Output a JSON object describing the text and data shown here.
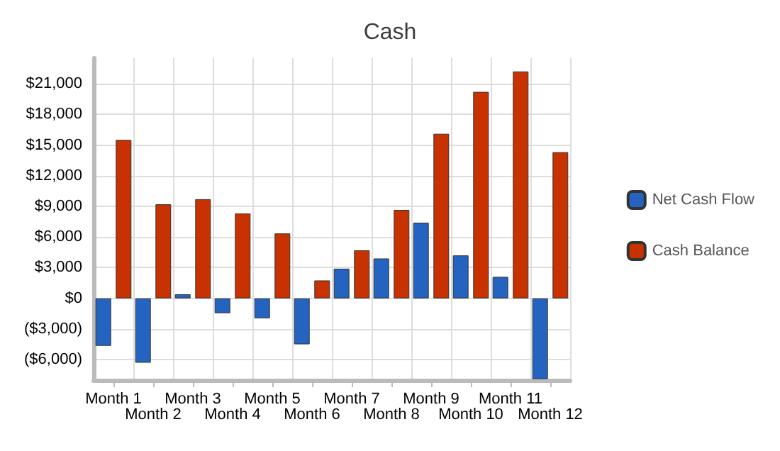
{
  "chart_data": {
    "type": "bar",
    "title": "Cash",
    "categories": [
      "Month 1",
      "Month 2",
      "Month 3",
      "Month 4",
      "Month 5",
      "Month 6",
      "Month 7",
      "Month 8",
      "Month 9",
      "Month 10",
      "Month 11",
      "Month 12"
    ],
    "series": [
      {
        "name": "Net Cash Flow",
        "color": "#2563c0",
        "values": [
          -4650,
          -6300,
          400,
          -1450,
          -1950,
          -4500,
          2900,
          3900,
          7400,
          4200,
          2100,
          -7900
        ]
      },
      {
        "name": "Cash Balance",
        "color": "#c83200",
        "values": [
          15500,
          9200,
          9700,
          8300,
          6350,
          1750,
          4700,
          8650,
          16100,
          20200,
          22200,
          14300
        ]
      }
    ],
    "ylim": [
      -8000,
      23500
    ],
    "yticks": [
      {
        "value": -6000,
        "label": "($6,000)"
      },
      {
        "value": -3000,
        "label": "($3,000)"
      },
      {
        "value": 0,
        "label": "$0"
      },
      {
        "value": 3000,
        "label": "$3,000"
      },
      {
        "value": 6000,
        "label": "$6,000"
      },
      {
        "value": 9000,
        "label": "$9,000"
      },
      {
        "value": 12000,
        "label": "$12,000"
      },
      {
        "value": 15000,
        "label": "$15,000"
      },
      {
        "value": 18000,
        "label": "$18,000"
      },
      {
        "value": 21000,
        "label": "$21,000"
      }
    ],
    "grid": true,
    "legend": "right"
  }
}
